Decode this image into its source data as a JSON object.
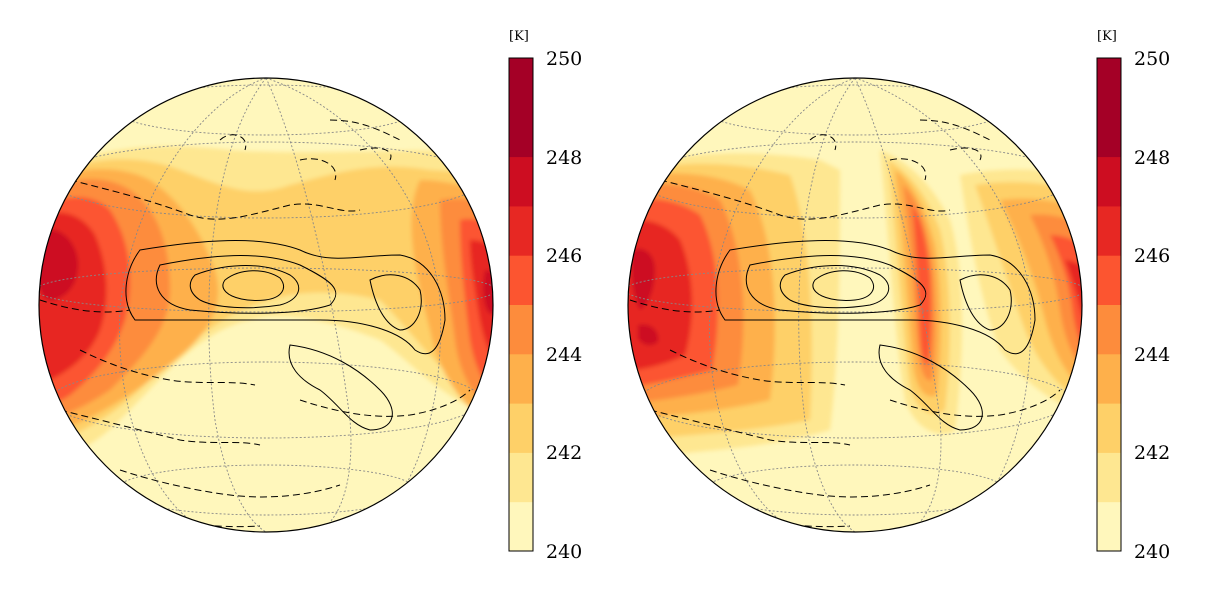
{
  "colormap": {
    "name": "YlOrRd",
    "levels": [
      {
        "from": 240,
        "to": 241,
        "color": "#fff7bc"
      },
      {
        "from": 241,
        "to": 242,
        "color": "#fee791"
      },
      {
        "from": 242,
        "to": 243,
        "color": "#fed068"
      },
      {
        "from": 243,
        "to": 244,
        "color": "#feb04b"
      },
      {
        "from": 244,
        "to": 245,
        "color": "#fd8c3c"
      },
      {
        "from": 245,
        "to": 246,
        "color": "#fc5530"
      },
      {
        "from": 246,
        "to": 247,
        "color": "#e72823"
      },
      {
        "from": 247,
        "to": 248,
        "color": "#cd0d21"
      },
      {
        "from": 248,
        "to": 249,
        "color": "#a40026"
      },
      {
        "from": 249,
        "to": 250,
        "color": "#a40026"
      }
    ]
  },
  "panels": [
    {
      "id": "left",
      "colorbar": {
        "unit": "[K]",
        "min": 240,
        "max": 250,
        "ticks": [
          "240",
          "242",
          "244",
          "246",
          "248",
          "250"
        ]
      }
    },
    {
      "id": "right",
      "colorbar": {
        "unit": "[K]",
        "min": 240,
        "max": 250,
        "ticks": [
          "240",
          "242",
          "244",
          "246",
          "248",
          "250"
        ]
      }
    }
  ]
}
